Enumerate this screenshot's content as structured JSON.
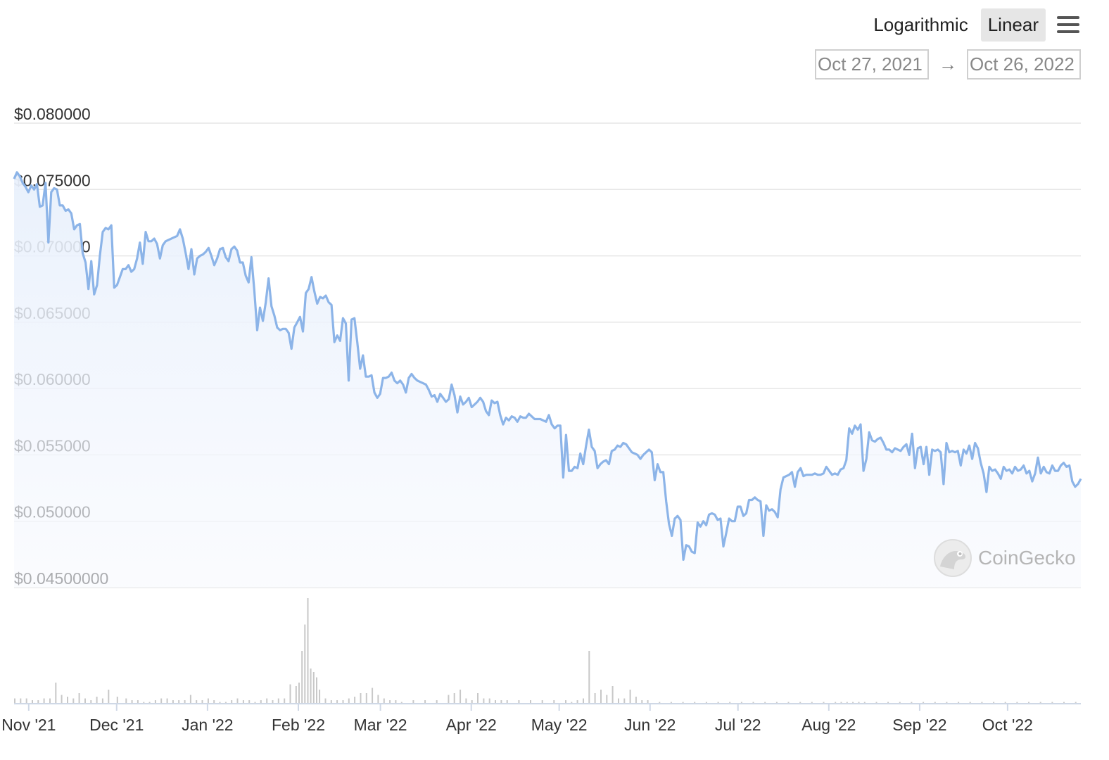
{
  "toolbar": {
    "log_label": "Logarithmic",
    "linear_label": "Linear",
    "active": "Linear"
  },
  "range": {
    "from": "Oct 27, 2021",
    "arrow": "→",
    "to": "Oct 26, 2022"
  },
  "watermark": "CoinGecko",
  "colors": {
    "line": "#8cb4e8",
    "area_top": "#e8f0fc",
    "volume": "#c8c8c8",
    "grid": "#e6e6e6"
  },
  "chart_data": {
    "type": "area",
    "series": [
      {
        "values": [
          0.0758,
          0.0763,
          0.076,
          0.0755,
          0.0752,
          0.0748,
          0.0753,
          0.075,
          0.0754,
          0.0737,
          0.0738,
          0.0755,
          0.071,
          0.0748,
          0.0751,
          0.075,
          0.0738,
          0.0738,
          0.0734,
          0.0735,
          0.0732,
          0.072,
          0.0723,
          0.0724,
          0.0702,
          0.0695,
          0.0675,
          0.0696,
          0.0671,
          0.0678,
          0.07,
          0.0718,
          0.0721,
          0.072,
          0.0723,
          0.0676,
          0.0678,
          0.0684,
          0.069,
          0.069,
          0.0693,
          0.0688,
          0.069,
          0.0698,
          0.071,
          0.0694,
          0.0718,
          0.0711,
          0.0711,
          0.0713,
          0.0709,
          0.0698,
          0.0708,
          0.0711,
          0.0712,
          0.0713,
          0.0714,
          0.0715,
          0.072,
          0.0713,
          0.0702,
          0.069,
          0.0705,
          0.0686,
          0.0698,
          0.07,
          0.0701,
          0.0703,
          0.0706,
          0.07,
          0.0693,
          0.0698,
          0.0705,
          0.0706,
          0.0699,
          0.0696,
          0.0705,
          0.0707,
          0.0704,
          0.0695,
          0.0695,
          0.0685,
          0.068,
          0.0699,
          0.0674,
          0.0644,
          0.0661,
          0.0651,
          0.0665,
          0.0683,
          0.0662,
          0.0655,
          0.0646,
          0.0644,
          0.0645,
          0.0645,
          0.0642,
          0.063,
          0.0646,
          0.065,
          0.0654,
          0.0643,
          0.0672,
          0.0675,
          0.0684,
          0.0673,
          0.0664,
          0.0669,
          0.0668,
          0.067,
          0.0665,
          0.0663,
          0.0635,
          0.064,
          0.0636,
          0.0653,
          0.0649,
          0.0606,
          0.0652,
          0.0653,
          0.0635,
          0.0615,
          0.0625,
          0.0609,
          0.0609,
          0.061,
          0.0597,
          0.0593,
          0.0596,
          0.0608,
          0.0608,
          0.0609,
          0.0612,
          0.0606,
          0.0604,
          0.0606,
          0.0603,
          0.0597,
          0.0608,
          0.0611,
          0.0608,
          0.0606,
          0.0605,
          0.0604,
          0.0603,
          0.0599,
          0.0594,
          0.0595,
          0.059,
          0.0596,
          0.0593,
          0.059,
          0.0592,
          0.0603,
          0.0595,
          0.0582,
          0.0594,
          0.0588,
          0.059,
          0.0593,
          0.0586,
          0.0588,
          0.059,
          0.0593,
          0.059,
          0.0583,
          0.058,
          0.0591,
          0.0589,
          0.059,
          0.058,
          0.0573,
          0.0578,
          0.0576,
          0.0579,
          0.0578,
          0.0575,
          0.0579,
          0.0578,
          0.0578,
          0.0581,
          0.0579,
          0.0577,
          0.0577,
          0.0577,
          0.0576,
          0.0575,
          0.058,
          0.0573,
          0.057,
          0.0572,
          0.0572,
          0.0533,
          0.0565,
          0.0538,
          0.0538,
          0.0541,
          0.054,
          0.0551,
          0.0543,
          0.0557,
          0.0569,
          0.0556,
          0.0553,
          0.054,
          0.0543,
          0.0545,
          0.0546,
          0.0543,
          0.0553,
          0.0554,
          0.0557,
          0.0556,
          0.0559,
          0.0558,
          0.0555,
          0.0552,
          0.0551,
          0.055,
          0.0547,
          0.055,
          0.0552,
          0.0554,
          0.0552,
          0.0531,
          0.0543,
          0.0537,
          0.0537,
          0.0515,
          0.0498,
          0.0489,
          0.0502,
          0.0504,
          0.0501,
          0.0471,
          0.0482,
          0.0481,
          0.0477,
          0.0476,
          0.0499,
          0.0496,
          0.05,
          0.0497,
          0.0505,
          0.0506,
          0.0505,
          0.0501,
          0.0502,
          0.0481,
          0.0491,
          0.0502,
          0.05,
          0.05,
          0.0511,
          0.0511,
          0.0504,
          0.0506,
          0.0516,
          0.0516,
          0.0518,
          0.0516,
          0.0515,
          0.0489,
          0.0512,
          0.0508,
          0.0509,
          0.0507,
          0.0503,
          0.0524,
          0.0533,
          0.0534,
          0.0535,
          0.0537,
          0.0526,
          0.0537,
          0.054,
          0.0534,
          0.0535,
          0.0535,
          0.0535,
          0.0536,
          0.0535,
          0.0535,
          0.0536,
          0.0541,
          0.0538,
          0.0535,
          0.0536,
          0.0535,
          0.0539,
          0.054,
          0.0546,
          0.057,
          0.0566,
          0.0572,
          0.0569,
          0.0573,
          0.0538,
          0.0547,
          0.0567,
          0.0561,
          0.056,
          0.0562,
          0.0563,
          0.0559,
          0.0554,
          0.0554,
          0.0552,
          0.0555,
          0.0554,
          0.0553,
          0.0556,
          0.0558,
          0.055,
          0.0566,
          0.054,
          0.0555,
          0.0556,
          0.0543,
          0.0556,
          0.0535,
          0.0554,
          0.0553,
          0.0554,
          0.0552,
          0.0528,
          0.0559,
          0.0552,
          0.0553,
          0.0552,
          0.0553,
          0.0542,
          0.0554,
          0.0551,
          0.0557,
          0.0547,
          0.0559,
          0.0555,
          0.0544,
          0.0536,
          0.0522,
          0.0541,
          0.0538,
          0.0539,
          0.0536,
          0.0532,
          0.0541,
          0.0538,
          0.0539,
          0.0536,
          0.0541,
          0.0538,
          0.0539,
          0.0542,
          0.0536,
          0.0538,
          0.053,
          0.0536,
          0.0548,
          0.0536,
          0.0541,
          0.0537,
          0.0536,
          0.0542,
          0.0538,
          0.0538,
          0.0542,
          0.0544,
          0.0541,
          0.0542,
          0.053,
          0.0526,
          0.0528,
          0.0532
        ]
      }
    ],
    "ylim": [
      0.045,
      0.08
    ],
    "y_ticks": [
      "$0.080000",
      "$0.075000",
      "$0.070000",
      "$0.065000",
      "$0.060000",
      "$0.055000",
      "$0.050000",
      "$0.04500000"
    ],
    "y_tick_values": [
      0.08,
      0.075,
      0.07,
      0.065,
      0.06,
      0.055,
      0.05,
      0.045
    ],
    "x_ticks": [
      "Nov '21",
      "Dec '21",
      "Jan '22",
      "Feb '22",
      "Mar '22",
      "Apr '22",
      "May '22",
      "Jun '22",
      "Jul '22",
      "Aug '22",
      "Sep '22",
      "Oct '22"
    ],
    "x_tick_days": [
      5,
      35,
      66,
      97,
      125,
      156,
      186,
      217,
      247,
      278,
      309,
      339
    ],
    "total_days": 364,
    "volume": {
      "days": [
        0,
        2,
        4,
        6,
        8,
        10,
        12,
        14,
        16,
        18,
        20,
        22,
        24,
        26,
        28,
        30,
        32,
        35,
        38,
        40,
        42,
        44,
        46,
        48,
        50,
        52,
        54,
        56,
        58,
        60,
        62,
        64,
        66,
        68,
        70,
        72,
        74,
        76,
        78,
        80,
        82,
        84,
        86,
        88,
        90,
        92,
        94,
        96,
        97,
        98,
        99,
        100,
        101,
        102,
        103,
        104,
        106,
        108,
        110,
        112,
        114,
        116,
        118,
        120,
        122,
        124,
        126,
        128,
        130,
        132,
        136,
        140,
        144,
        148,
        150,
        152,
        154,
        156,
        158,
        160,
        162,
        164,
        166,
        168,
        172,
        176,
        180,
        184,
        188,
        190,
        192,
        194,
        196,
        198,
        200,
        202,
        204,
        206,
        208,
        210,
        212,
        214,
        216,
        220,
        224,
        228,
        232,
        236,
        240,
        244,
        248,
        252,
        256,
        260,
        264,
        268,
        272,
        276,
        280,
        282,
        284,
        286,
        288,
        290,
        294,
        298,
        302,
        306,
        310,
        314,
        318,
        322,
        326,
        330,
        334,
        338,
        342,
        346,
        350,
        354,
        358,
        362
      ],
      "values": [
        0.03,
        0.03,
        0.03,
        0.02,
        0.02,
        0.03,
        0.03,
        0.12,
        0.05,
        0.04,
        0.03,
        0.06,
        0.03,
        0.02,
        0.04,
        0.03,
        0.08,
        0.04,
        0.03,
        0.02,
        0.02,
        0.01,
        0.01,
        0.02,
        0.03,
        0.03,
        0.02,
        0.02,
        0.02,
        0.05,
        0.02,
        0.02,
        0.03,
        0.02,
        0.01,
        0.01,
        0.02,
        0.03,
        0.02,
        0.02,
        0.01,
        0.02,
        0.03,
        0.02,
        0.03,
        0.03,
        0.11,
        0.1,
        0.12,
        0.3,
        0.45,
        0.6,
        0.2,
        0.18,
        0.15,
        0.08,
        0.03,
        0.02,
        0.02,
        0.02,
        0.03,
        0.04,
        0.06,
        0.06,
        0.09,
        0.05,
        0.03,
        0.02,
        0.02,
        0.01,
        0.02,
        0.02,
        0.02,
        0.05,
        0.06,
        0.08,
        0.03,
        0.02,
        0.06,
        0.03,
        0.03,
        0.02,
        0.02,
        0.02,
        0.02,
        0.02,
        0.02,
        0.02,
        0.02,
        0.01,
        0.02,
        0.03,
        0.3,
        0.06,
        0.08,
        0.05,
        0.1,
        0.03,
        0.03,
        0.08,
        0.04,
        0.02,
        0.02,
        0.01,
        0.01,
        0.01,
        0.01,
        0.01,
        0.01,
        0.01,
        0.01,
        0.01,
        0.01,
        0.01,
        0.01,
        0.01,
        0.01,
        0.01,
        0.01,
        0.01,
        0.01,
        0.01,
        0.01,
        0.01,
        0.01,
        0.01,
        0.01,
        0.01,
        0.01,
        0.01,
        0.01,
        0.01,
        0.01,
        0.01,
        0.01,
        0.01,
        0.01,
        0.01,
        0.01,
        0.01,
        0.01,
        0.01
      ]
    }
  }
}
